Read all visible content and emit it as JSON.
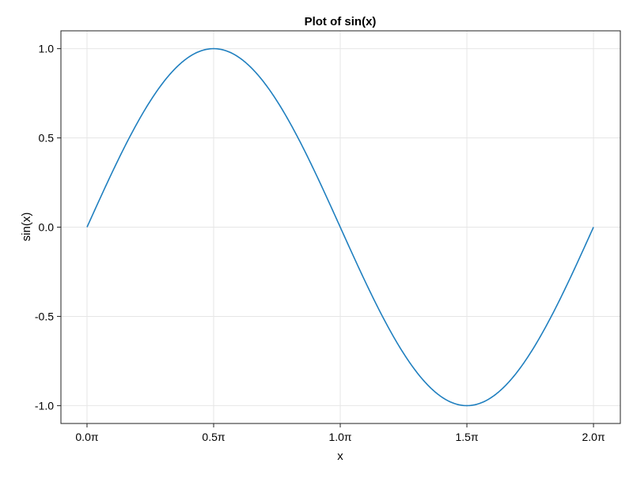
{
  "chart_data": {
    "type": "line",
    "title": "Plot of sin(x)",
    "xlabel": "x",
    "ylabel": "sin(x)",
    "xlim": [
      -0.103,
      2.106
    ],
    "ylim": [
      -1.1,
      1.1
    ],
    "x_unit": "π",
    "grid": true,
    "xticks": [
      0,
      0.5,
      1,
      1.5,
      2
    ],
    "xtick_labels": [
      "0.0π",
      "0.5π",
      "1.0π",
      "1.5π",
      "2.0π"
    ],
    "yticks": [
      1,
      0.5,
      0,
      -0.5,
      -1
    ],
    "ytick_labels": [
      "1.0",
      "0.5",
      "0.0",
      "-0.5",
      "-1.0"
    ],
    "series": [
      {
        "function": "sin(x)",
        "x_range": [
          0,
          2
        ],
        "color": "#1f7fbf"
      }
    ]
  }
}
